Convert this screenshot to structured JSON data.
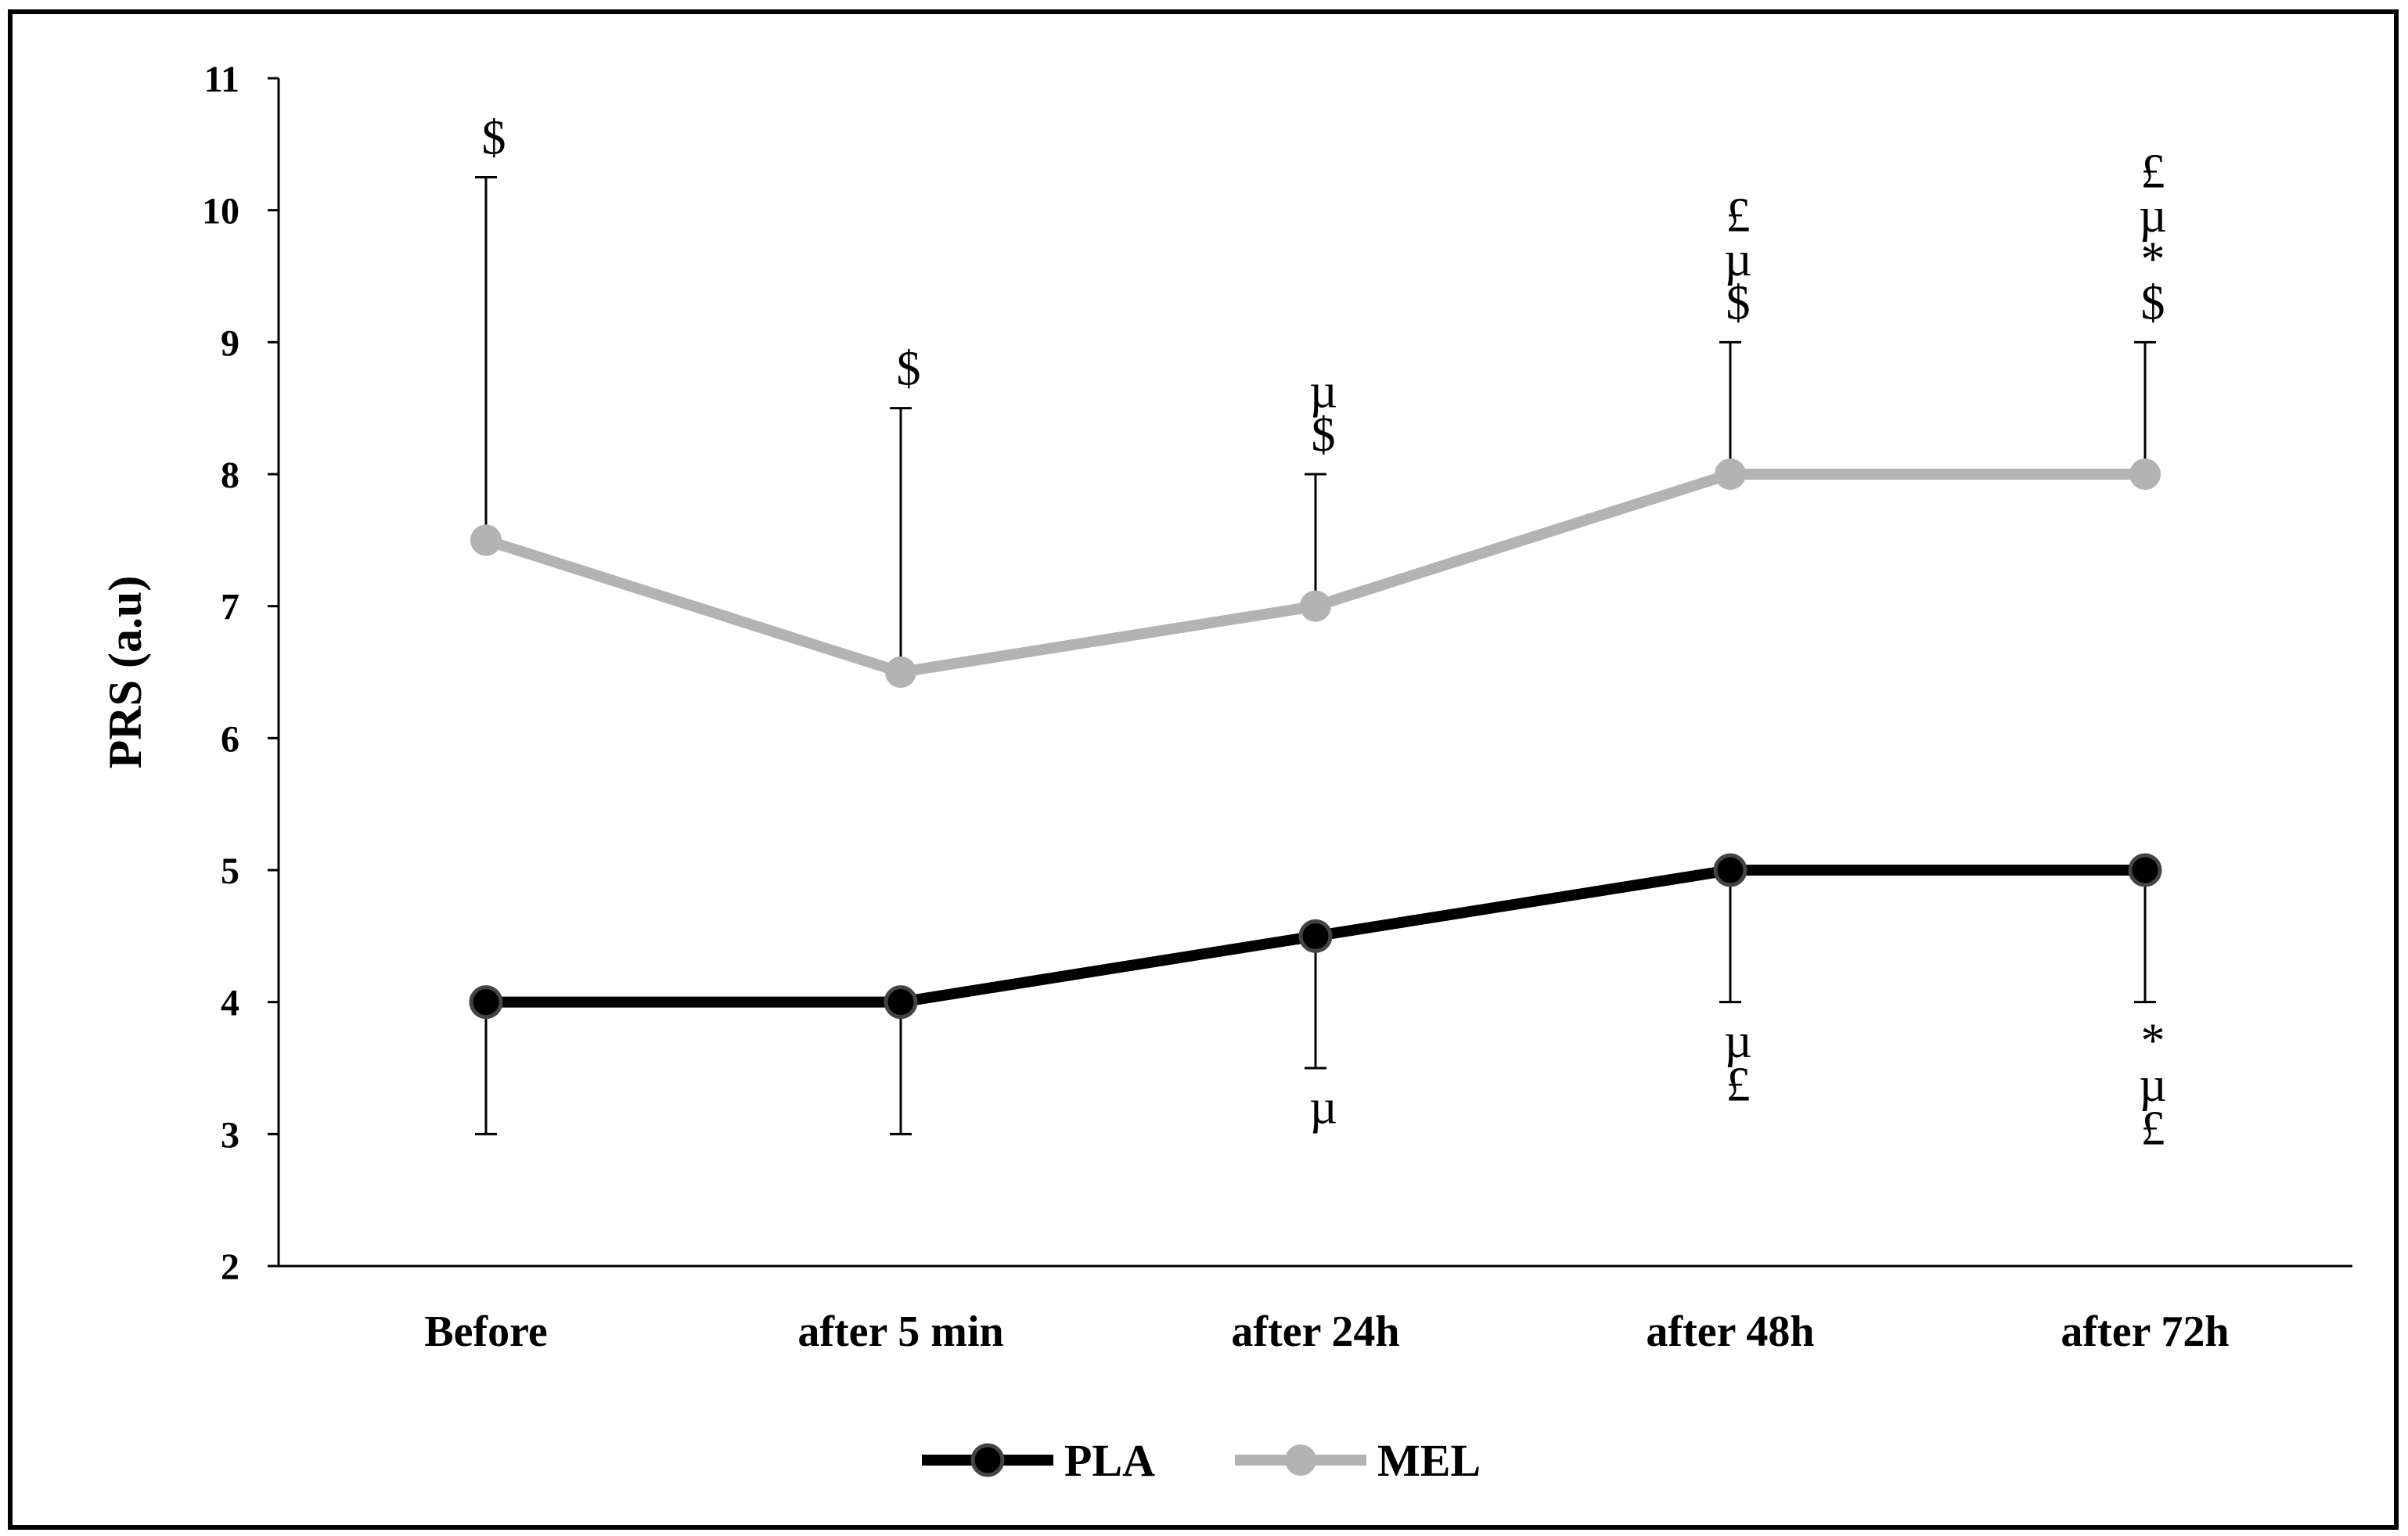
{
  "chart_data": {
    "type": "line",
    "title": "",
    "xlabel": "",
    "ylabel": "PRS (a.u)",
    "ylim": [
      2,
      11
    ],
    "yticks": [
      2,
      3,
      4,
      5,
      6,
      7,
      8,
      9,
      10,
      11
    ],
    "categories": [
      "Before",
      "after 5 min",
      "after 24h",
      "after 48h",
      "after 72h"
    ],
    "series": [
      {
        "name": "PLA",
        "color": "#000000",
        "values": [
          4,
          4,
          4.5,
          5,
          5
        ],
        "error_lower": [
          1,
          1,
          1,
          1,
          1
        ],
        "error_direction": "down",
        "annotations": [
          [],
          [],
          [
            "µ"
          ],
          [
            "µ",
            "£"
          ],
          [
            "*",
            "µ",
            "£"
          ]
        ]
      },
      {
        "name": "MEL",
        "color": "#b3b3b3",
        "values": [
          7.5,
          6.5,
          7,
          8,
          8
        ],
        "error_upper": [
          2.75,
          2,
          1,
          1,
          1
        ],
        "error_direction": "up",
        "annotations": [
          [
            "$"
          ],
          [
            "$"
          ],
          [
            "µ",
            "$"
          ],
          [
            "£",
            "µ",
            "$"
          ],
          [
            "£",
            "µ",
            "*",
            "$"
          ]
        ]
      }
    ],
    "legend": {
      "placement": "bottom-center",
      "entries": [
        "PLA",
        "MEL"
      ]
    }
  }
}
